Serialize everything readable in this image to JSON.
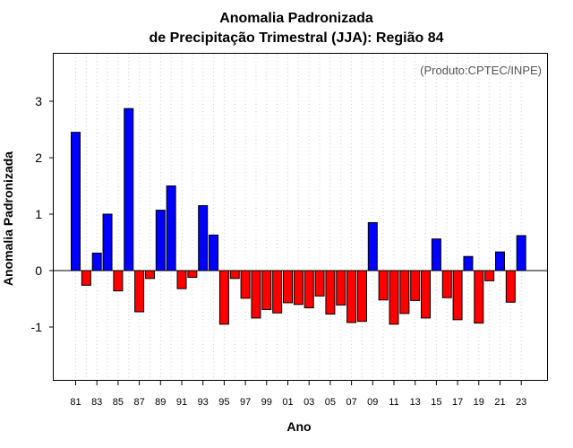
{
  "chart_data": {
    "type": "bar",
    "title_line1": "Anomalia Padronizada",
    "title_line2": "de Precipitação Trimestral (JJA): Região 84",
    "xlabel": "Ano",
    "ylabel": "Anomalia Padronizada",
    "credit": "(Produto:CPTEC/INPE)",
    "ylim": [
      -2,
      3.9
    ],
    "yticks": [
      "-1",
      "0",
      "1",
      "2",
      "3"
    ],
    "ytick_values": [
      -1,
      0,
      1,
      2,
      3
    ],
    "positive_color": "#0000ff",
    "negative_color": "#ff0000",
    "xtick_labels": [
      "81",
      "83",
      "85",
      "87",
      "89",
      "91",
      "93",
      "95",
      "97",
      "99",
      "01",
      "03",
      "05",
      "07",
      "09",
      "11",
      "13",
      "15",
      "17",
      "19",
      "21",
      "23"
    ],
    "categories": [
      "1981",
      "1982",
      "1983",
      "1984",
      "1985",
      "1986",
      "1987",
      "1988",
      "1989",
      "1990",
      "1991",
      "1992",
      "1993",
      "1994",
      "1995",
      "1996",
      "1997",
      "1998",
      "1999",
      "2000",
      "2001",
      "2002",
      "2003",
      "2004",
      "2005",
      "2006",
      "2007",
      "2008",
      "2009",
      "2010",
      "2011",
      "2012",
      "2013",
      "2014",
      "2015",
      "2016",
      "2017",
      "2018",
      "2019",
      "2020",
      "2021",
      "2022",
      "2023"
    ],
    "values": [
      2.45,
      -0.26,
      0.31,
      1.0,
      -0.36,
      2.87,
      -0.73,
      -0.14,
      1.07,
      1.5,
      -0.32,
      -0.12,
      1.15,
      0.63,
      -0.95,
      -0.14,
      -0.49,
      -0.84,
      -0.69,
      -0.75,
      -0.57,
      -0.6,
      -0.66,
      -0.45,
      -0.77,
      -0.61,
      -0.92,
      -0.9,
      0.85,
      -0.52,
      -0.95,
      -0.76,
      -0.53,
      -0.84,
      0.56,
      -0.48,
      -0.87,
      0.25,
      -0.93,
      -0.18,
      0.33,
      -0.56,
      0.62
    ]
  }
}
